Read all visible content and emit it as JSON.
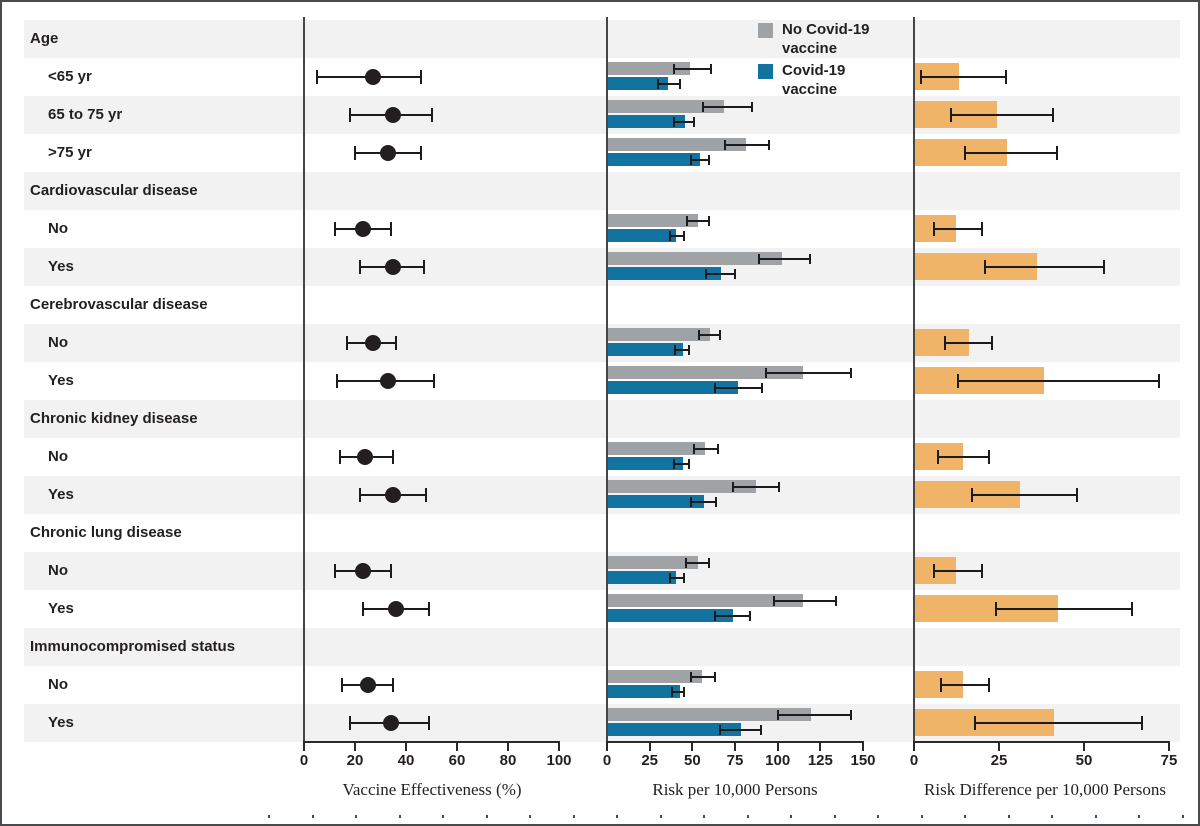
{
  "colors": {
    "no_vaccine": "#9fa3a6",
    "vaccine": "#1272a0",
    "risk_diff": "#f0b469",
    "stripe": "#f2f2f2",
    "ink": "#231f20"
  },
  "chart_data": {
    "type": "bar",
    "subtype": "forest-plot-with-paired-bars",
    "legend": [
      {
        "label": "No Covid-19 vaccine",
        "series": "no_vaccine"
      },
      {
        "label": "Covid-19 vaccine",
        "series": "vaccine"
      }
    ],
    "panels": {
      "ve": {
        "label": "Vaccine Effectiveness (%)",
        "min": 0,
        "max": 100,
        "ticks": [
          0,
          20,
          40,
          60,
          80,
          100
        ],
        "kind": "point-ci"
      },
      "risk": {
        "label": "Risk per 10,000 Persons",
        "min": 0,
        "max": 150,
        "ticks": [
          0,
          25,
          50,
          75,
          100,
          125,
          150
        ],
        "kind": "paired-bars-ci"
      },
      "rd": {
        "label": "Risk Difference per 10,000 Persons",
        "min": 0,
        "max": 75,
        "ticks": [
          0,
          25,
          50,
          75
        ],
        "kind": "bar-ci"
      }
    },
    "rows": [
      {
        "label": "Age",
        "header": true
      },
      {
        "label": "<65 yr",
        "ve": {
          "est": 27,
          "lo": 5,
          "hi": 46
        },
        "risk_no_vaccine": {
          "est": 48,
          "lo": 39,
          "hi": 61
        },
        "risk_vaccine": {
          "est": 35,
          "lo": 30,
          "hi": 43
        },
        "risk_diff": {
          "est": 13,
          "lo": 2,
          "hi": 27
        }
      },
      {
        "label": "65 to 75 yr",
        "ve": {
          "est": 35,
          "lo": 18,
          "hi": 50
        },
        "risk_no_vaccine": {
          "est": 68,
          "lo": 56,
          "hi": 85
        },
        "risk_vaccine": {
          "est": 45,
          "lo": 39,
          "hi": 51
        },
        "risk_diff": {
          "est": 24,
          "lo": 11,
          "hi": 41
        }
      },
      {
        "label": ">75 yr",
        "ve": {
          "est": 33,
          "lo": 20,
          "hi": 46
        },
        "risk_no_vaccine": {
          "est": 81,
          "lo": 69,
          "hi": 95
        },
        "risk_vaccine": {
          "est": 54,
          "lo": 49,
          "hi": 60
        },
        "risk_diff": {
          "est": 27,
          "lo": 15,
          "hi": 42
        }
      },
      {
        "label": "Cardiovascular disease",
        "header": true
      },
      {
        "label": "No",
        "ve": {
          "est": 23,
          "lo": 12,
          "hi": 34
        },
        "risk_no_vaccine": {
          "est": 53,
          "lo": 47,
          "hi": 60
        },
        "risk_vaccine": {
          "est": 40,
          "lo": 37,
          "hi": 45
        },
        "risk_diff": {
          "est": 12,
          "lo": 6,
          "hi": 20
        }
      },
      {
        "label": "Yes",
        "ve": {
          "est": 35,
          "lo": 22,
          "hi": 47
        },
        "risk_no_vaccine": {
          "est": 102,
          "lo": 89,
          "hi": 119
        },
        "risk_vaccine": {
          "est": 66,
          "lo": 58,
          "hi": 75
        },
        "risk_diff": {
          "est": 36,
          "lo": 21,
          "hi": 56
        }
      },
      {
        "label": "Cerebrovascular disease",
        "header": true
      },
      {
        "label": "No",
        "ve": {
          "est": 27,
          "lo": 17,
          "hi": 36
        },
        "risk_no_vaccine": {
          "est": 60,
          "lo": 54,
          "hi": 66
        },
        "risk_vaccine": {
          "est": 44,
          "lo": 40,
          "hi": 48
        },
        "risk_diff": {
          "est": 16,
          "lo": 9,
          "hi": 23
        }
      },
      {
        "label": "Yes",
        "ve": {
          "est": 33,
          "lo": 13,
          "hi": 51
        },
        "risk_no_vaccine": {
          "est": 114,
          "lo": 93,
          "hi": 143
        },
        "risk_vaccine": {
          "est": 76,
          "lo": 63,
          "hi": 91
        },
        "risk_diff": {
          "est": 38,
          "lo": 13,
          "hi": 72
        }
      },
      {
        "label": "Chronic kidney disease",
        "header": true
      },
      {
        "label": "No",
        "ve": {
          "est": 24,
          "lo": 14,
          "hi": 35
        },
        "risk_no_vaccine": {
          "est": 57,
          "lo": 51,
          "hi": 65
        },
        "risk_vaccine": {
          "est": 44,
          "lo": 39,
          "hi": 48
        },
        "risk_diff": {
          "est": 14,
          "lo": 7,
          "hi": 22
        }
      },
      {
        "label": "Yes",
        "ve": {
          "est": 35,
          "lo": 22,
          "hi": 48
        },
        "risk_no_vaccine": {
          "est": 87,
          "lo": 74,
          "hi": 101
        },
        "risk_vaccine": {
          "est": 56,
          "lo": 49,
          "hi": 64
        },
        "risk_diff": {
          "est": 31,
          "lo": 17,
          "hi": 48
        }
      },
      {
        "label": "Chronic lung disease",
        "header": true
      },
      {
        "label": "No",
        "ve": {
          "est": 23,
          "lo": 12,
          "hi": 34
        },
        "risk_no_vaccine": {
          "est": 53,
          "lo": 46,
          "hi": 60
        },
        "risk_vaccine": {
          "est": 40,
          "lo": 37,
          "hi": 45
        },
        "risk_diff": {
          "est": 12,
          "lo": 6,
          "hi": 20
        }
      },
      {
        "label": "Yes",
        "ve": {
          "est": 36,
          "lo": 23,
          "hi": 49
        },
        "risk_no_vaccine": {
          "est": 114,
          "lo": 98,
          "hi": 134
        },
        "risk_vaccine": {
          "est": 73,
          "lo": 63,
          "hi": 84
        },
        "risk_diff": {
          "est": 42,
          "lo": 24,
          "hi": 64
        }
      },
      {
        "label": "Immunocompromised status",
        "header": true
      },
      {
        "label": "No",
        "ve": {
          "est": 25,
          "lo": 15,
          "hi": 35
        },
        "risk_no_vaccine": {
          "est": 55,
          "lo": 49,
          "hi": 63
        },
        "risk_vaccine": {
          "est": 42,
          "lo": 38,
          "hi": 45
        },
        "risk_diff": {
          "est": 14,
          "lo": 8,
          "hi": 22
        }
      },
      {
        "label": "Yes",
        "ve": {
          "est": 34,
          "lo": 18,
          "hi": 49
        },
        "risk_no_vaccine": {
          "est": 119,
          "lo": 100,
          "hi": 143
        },
        "risk_vaccine": {
          "est": 78,
          "lo": 66,
          "hi": 90
        },
        "risk_diff": {
          "est": 41,
          "lo": 18,
          "hi": 67
        }
      }
    ]
  }
}
